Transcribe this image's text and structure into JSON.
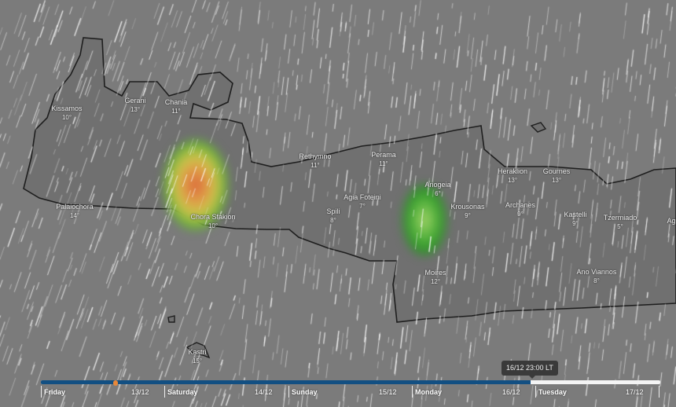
{
  "map": {
    "background_color": "#7b7b7b",
    "coast_color": "#1e1e1e",
    "layer": "rain",
    "cities": [
      {
        "name": "Kissamos",
        "temp": "10°"
      },
      {
        "name": "Gerani",
        "temp": "13°"
      },
      {
        "name": "Chania",
        "temp": "11°"
      },
      {
        "name": "Palaiochora",
        "temp": "14°"
      },
      {
        "name": "Chora Sfakion",
        "temp": "10°"
      },
      {
        "name": "Rethymno",
        "temp": "11°"
      },
      {
        "name": "Perama",
        "temp": "11°"
      },
      {
        "name": "Agia Foteini",
        "temp": "7°"
      },
      {
        "name": "Spili",
        "temp": "8°"
      },
      {
        "name": "Anogeia",
        "temp": "6°"
      },
      {
        "name": "Krousonas",
        "temp": "9°"
      },
      {
        "name": "Heraklion",
        "temp": "13°"
      },
      {
        "name": "Gournes",
        "temp": "13°"
      },
      {
        "name": "Archanes",
        "temp": "9°"
      },
      {
        "name": "Kastelli",
        "temp": "9°"
      },
      {
        "name": "Tzermiado",
        "temp": "5°"
      },
      {
        "name": "Agi",
        "temp": ""
      },
      {
        "name": "Moires",
        "temp": "12°"
      },
      {
        "name": "Ano Viannos",
        "temp": "8°"
      },
      {
        "name": "Kastri",
        "temp": "15°"
      }
    ]
  },
  "timeline": {
    "tooltip": "16/12 23:00 LT",
    "progress": 0.79,
    "fill_color": "#124f82",
    "marker_color": "#e8883a",
    "days": [
      {
        "day": "Friday",
        "date": "13/12"
      },
      {
        "day": "Saturday",
        "date": "14/12"
      },
      {
        "day": "Sunday",
        "date": "15/12"
      },
      {
        "day": "Monday",
        "date": "16/12"
      },
      {
        "day": "Tuesday",
        "date": "17/12"
      }
    ]
  }
}
